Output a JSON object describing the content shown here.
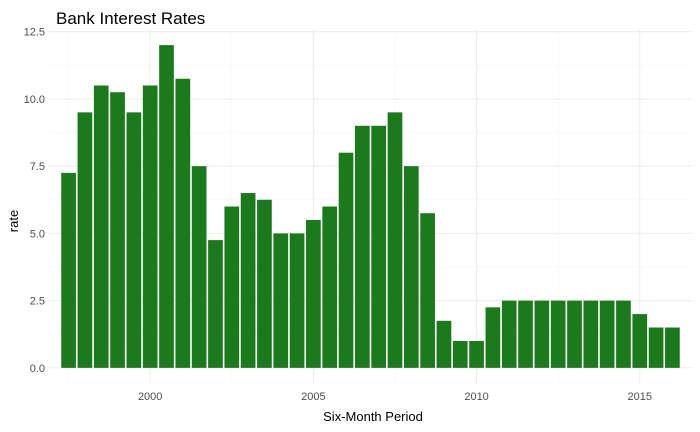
{
  "chart_data": {
    "type": "bar",
    "title": "Bank Interest Rates",
    "xlabel": "Six-Month Period",
    "ylabel": "rate",
    "x": [
      1997.5,
      1998.0,
      1998.5,
      1999.0,
      1999.5,
      2000.0,
      2000.5,
      2001.0,
      2001.5,
      2002.0,
      2002.5,
      2003.0,
      2003.5,
      2004.0,
      2004.5,
      2005.0,
      2005.5,
      2006.0,
      2006.5,
      2007.0,
      2007.5,
      2008.0,
      2008.5,
      2009.0,
      2009.5,
      2010.0,
      2010.5,
      2011.0,
      2011.5,
      2012.0,
      2012.5,
      2013.0,
      2013.5,
      2014.0,
      2014.5,
      2015.0,
      2015.5,
      2016.0
    ],
    "values": [
      7.25,
      9.5,
      10.5,
      10.25,
      9.5,
      10.5,
      12.0,
      10.75,
      7.5,
      4.75,
      6.0,
      6.5,
      6.25,
      5.0,
      5.0,
      5.5,
      6.0,
      8.0,
      9.0,
      9.0,
      9.5,
      7.5,
      5.75,
      1.75,
      1.0,
      1.0,
      2.25,
      2.5,
      2.5,
      2.5,
      2.5,
      2.5,
      2.5,
      2.5,
      2.5,
      2.0,
      1.5,
      1.5
    ],
    "xlim": [
      1996.9,
      2016.6
    ],
    "ylim": [
      -0.6,
      12.6
    ],
    "x_ticks": [
      2000,
      2005,
      2010,
      2015
    ],
    "x_tick_labels": [
      "2000",
      "2005",
      "2010",
      "2015"
    ],
    "y_ticks": [
      0,
      2.5,
      5,
      7.5,
      10,
      12.5
    ],
    "y_tick_labels": [
      "0.0",
      "2.5",
      "5.0",
      "7.5",
      "10.0",
      "12.5"
    ],
    "grid": true,
    "legend": "none",
    "bar_color": "#1b7a1b"
  }
}
